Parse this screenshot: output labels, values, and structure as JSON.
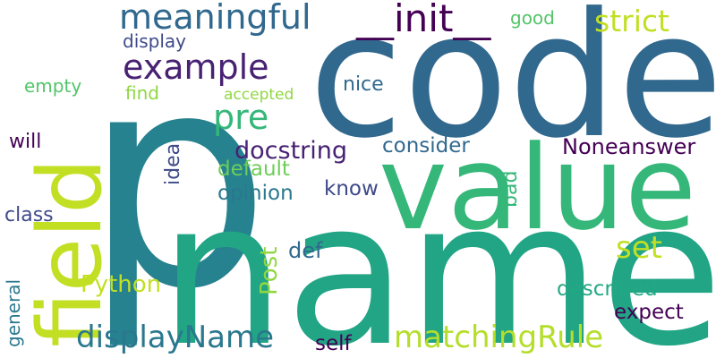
{
  "words": [
    {
      "text": "p",
      "color": "#26828e"
    },
    {
      "text": "code",
      "color": "#31688e"
    },
    {
      "text": "name",
      "color": "#21a585"
    },
    {
      "text": "value",
      "color": "#35b779"
    },
    {
      "text": "field",
      "color": "#c2df23"
    },
    {
      "text": "meaningful",
      "color": "#31688e"
    },
    {
      "text": "__init__",
      "color": "#440154"
    },
    {
      "text": "example",
      "color": "#482173"
    },
    {
      "text": "pre",
      "color": "#35b779"
    },
    {
      "text": "display",
      "color": "#3e4a89"
    },
    {
      "text": "empty",
      "color": "#52c569"
    },
    {
      "text": "find",
      "color": "#90d743"
    },
    {
      "text": "accepted",
      "color": "#90d743"
    },
    {
      "text": "nice",
      "color": "#31688e"
    },
    {
      "text": "good",
      "color": "#52c569"
    },
    {
      "text": "strict",
      "color": "#c2df23"
    },
    {
      "text": "will",
      "color": "#440154"
    },
    {
      "text": "docstring",
      "color": "#482173"
    },
    {
      "text": "consider",
      "color": "#31688e"
    },
    {
      "text": "Noneanswer",
      "color": "#440154"
    },
    {
      "text": "idea",
      "color": "#3e4a89"
    },
    {
      "text": "default",
      "color": "#6ece58"
    },
    {
      "text": "opinion",
      "color": "#2a788e"
    },
    {
      "text": "know",
      "color": "#3e4a89"
    },
    {
      "text": "bad",
      "color": "#35b779"
    },
    {
      "text": "class",
      "color": "#3e4a89"
    },
    {
      "text": "set",
      "color": "#c2df23"
    },
    {
      "text": "def",
      "color": "#31688e"
    },
    {
      "text": "Post",
      "color": "#90d743"
    },
    {
      "text": "general",
      "color": "#2a788e"
    },
    {
      "text": "Python",
      "color": "#c2df23"
    },
    {
      "text": "described",
      "color": "#22a884"
    },
    {
      "text": "expect",
      "color": "#440154"
    },
    {
      "text": "displayName",
      "color": "#2a788e"
    },
    {
      "text": "matchingRule",
      "color": "#b5de2b"
    },
    {
      "text": "self",
      "color": "#440154"
    }
  ]
}
